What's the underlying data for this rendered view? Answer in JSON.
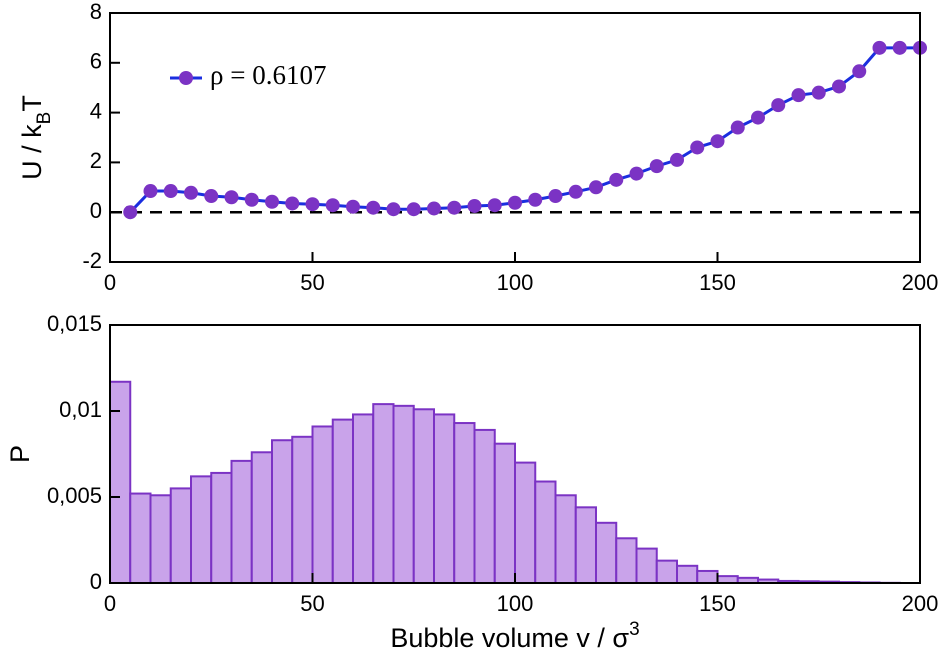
{
  "chart_data": [
    {
      "type": "line",
      "ylabel": [
        "U / k",
        "B",
        "T"
      ],
      "x": [
        5,
        10,
        15,
        20,
        25,
        30,
        35,
        40,
        45,
        50,
        55,
        60,
        65,
        70,
        75,
        80,
        85,
        90,
        95,
        100,
        105,
        110,
        115,
        120,
        125,
        130,
        135,
        140,
        145,
        150,
        155,
        160,
        165,
        170,
        175,
        180,
        185,
        190,
        195,
        200
      ],
      "series": [
        {
          "name": "ρ = 0.6107",
          "color": "#1a2ee0",
          "marker_color": "#7b33c4",
          "values": [
            0,
            0.85,
            0.85,
            0.78,
            0.65,
            0.6,
            0.5,
            0.42,
            0.35,
            0.32,
            0.28,
            0.22,
            0.18,
            0.12,
            0.12,
            0.15,
            0.18,
            0.25,
            0.28,
            0.38,
            0.5,
            0.65,
            0.82,
            1.0,
            1.3,
            1.55,
            1.85,
            2.1,
            2.6,
            2.85,
            3.4,
            3.8,
            4.3,
            4.7,
            4.8,
            5.05,
            5.66,
            6.6,
            6.6,
            6.6
          ]
        }
      ],
      "xlim": [
        0,
        200
      ],
      "xticks": [
        0,
        50,
        100,
        150,
        200
      ],
      "ylim": [
        -2,
        8
      ],
      "yticks": [
        -2,
        0,
        2,
        4,
        6,
        8
      ]
    },
    {
      "type": "histogram",
      "ylabel": [
        "P"
      ],
      "xlabel": [
        "Bubble volume v / σ",
        "3"
      ],
      "bins": [
        0,
        5,
        10,
        15,
        20,
        25,
        30,
        35,
        40,
        45,
        50,
        55,
        60,
        65,
        70,
        75,
        80,
        85,
        90,
        95,
        100,
        105,
        110,
        115,
        120,
        125,
        130,
        135,
        140,
        145,
        150,
        155,
        160,
        165,
        170,
        175,
        180,
        185,
        190,
        195,
        200
      ],
      "counts": [
        0.0117,
        0.0052,
        0.0051,
        0.0055,
        0.0062,
        0.0064,
        0.0071,
        0.0076,
        0.0083,
        0.0085,
        0.0091,
        0.0095,
        0.0098,
        0.0104,
        0.0103,
        0.0101,
        0.0098,
        0.0093,
        0.0089,
        0.0081,
        0.007,
        0.0059,
        0.0051,
        0.0044,
        0.0035,
        0.0026,
        0.002,
        0.0013,
        0.001,
        0.0007,
        0.0004,
        0.0003,
        0.0002,
        0.00012,
        0.0001,
        8e-05,
        5e-05,
        3e-05,
        1e-05,
        0
      ],
      "color": "#c9a3ea",
      "edgecolor": "#7b33c4",
      "xlim": [
        0,
        200
      ],
      "xticks": [
        0,
        50,
        100,
        150,
        200
      ],
      "ylim": [
        0,
        0.015
      ],
      "yticks": [
        0,
        {
          "value": 0.005,
          "label": "0,005"
        },
        {
          "value": 0.01,
          "label": "0,01"
        },
        {
          "value": 0.015,
          "label": "0,015"
        }
      ]
    }
  ]
}
